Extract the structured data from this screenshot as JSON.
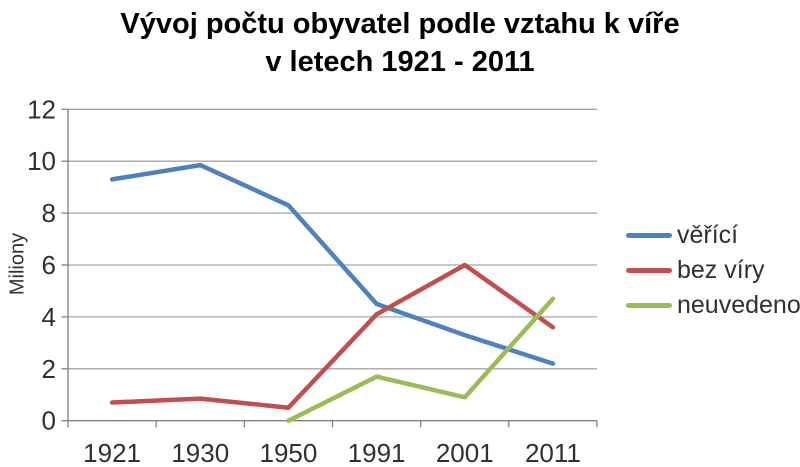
{
  "title": {
    "line1": "Vývoj počtu obyvatel podle vztahu k víře",
    "line2": "v letech 1921 - 2011"
  },
  "chart_data": {
    "type": "line",
    "title": "Vývoj počtu obyvatel podle vztahu k víře v letech 1921 - 2011",
    "ylabel": "Miliony",
    "xlabel": "",
    "categories": [
      "1921",
      "1930",
      "1950",
      "1991",
      "2001",
      "2011"
    ],
    "series": [
      {
        "name": "věřící",
        "color": "#4F81BD",
        "values": [
          9.3,
          9.85,
          8.3,
          4.5,
          3.3,
          2.2
        ]
      },
      {
        "name": "bez víry",
        "color": "#C0504D",
        "values": [
          0.7,
          0.85,
          0.5,
          4.1,
          6.0,
          3.6
        ]
      },
      {
        "name": "neuvedeno",
        "color": "#9BBB59",
        "values": [
          null,
          null,
          0,
          1.7,
          0.9,
          4.7
        ]
      }
    ],
    "ylim": [
      0,
      12
    ],
    "ytick_step": 2,
    "yticks": [
      0,
      2,
      4,
      6,
      8,
      10,
      12
    ],
    "grid": "horizontal",
    "legend_position": "right"
  },
  "colors": {
    "gridline": "#A6A6A6",
    "axis": "#808080",
    "tick_text": "#303030",
    "title_text": "#000000"
  }
}
